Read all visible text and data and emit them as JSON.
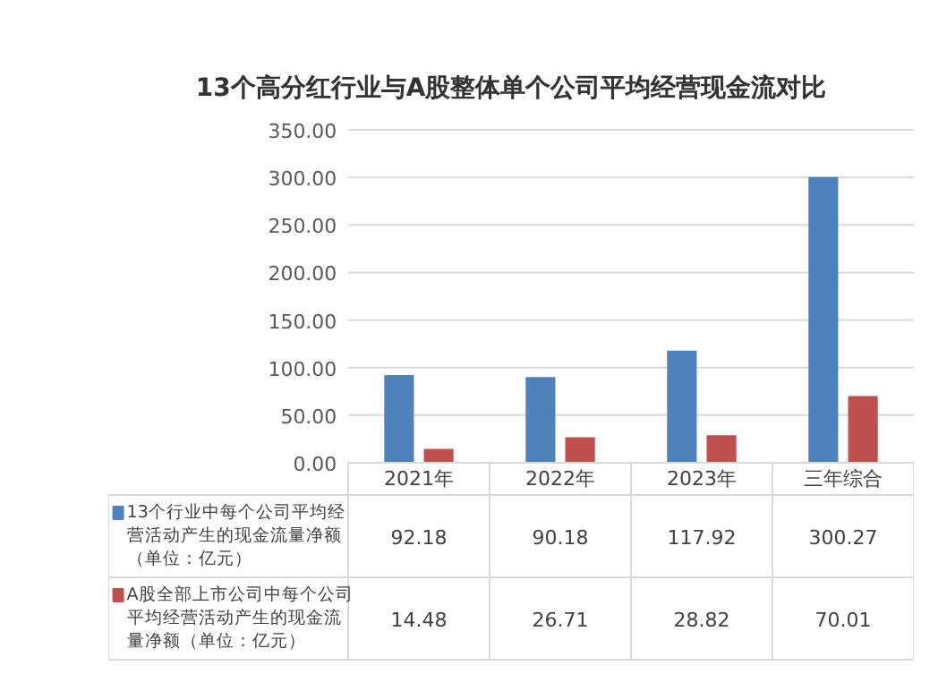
{
  "chart_data": {
    "type": "bar",
    "title": "13个高分红行业与A股整体单个公司平均经营现金流对比",
    "categories": [
      "2021年",
      "2022年",
      "2023年",
      "三年综合"
    ],
    "series": [
      {
        "name": "13个行业中每个公司平均经营活动产生的现金流量净额（单位：亿元）",
        "color": "#4f81bd",
        "values": [
          92.18,
          90.18,
          117.92,
          300.27
        ]
      },
      {
        "name": "A股全部上市公司中每个公司平均经营活动产生的现金流量净额（单位：亿元）",
        "color": "#c0504d",
        "values": [
          14.48,
          26.71,
          28.82,
          70.01
        ]
      }
    ],
    "ylim": [
      0,
      350
    ],
    "yticks": [
      {
        "value": 0,
        "label": "0.00"
      },
      {
        "value": 50,
        "label": "50.00"
      },
      {
        "value": 100,
        "label": "100.00"
      },
      {
        "value": 150,
        "label": "150.00"
      },
      {
        "value": 200,
        "label": "200.00"
      },
      {
        "value": 250,
        "label": "250.00"
      },
      {
        "value": 300,
        "label": "300.00"
      },
      {
        "value": 350,
        "label": "350.00"
      }
    ],
    "grid": "y",
    "legend": "bottom",
    "data_labels": true
  }
}
